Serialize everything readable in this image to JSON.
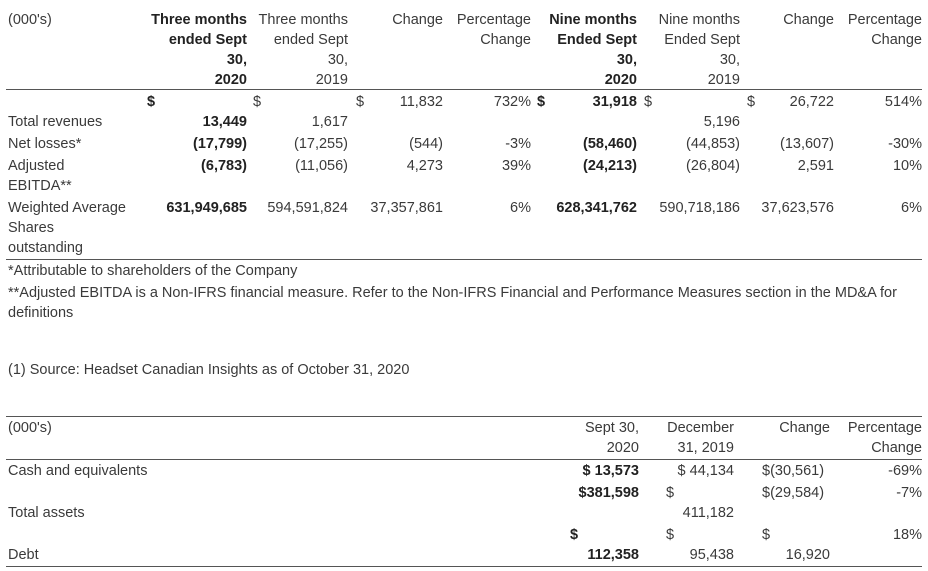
{
  "table1": {
    "header": {
      "unit": "(000's)",
      "col_3m_2020": [
        "Three months",
        "ended Sept",
        "30,",
        "2020"
      ],
      "col_3m_2019": [
        "Three months",
        "ended Sept",
        "30,",
        "2019"
      ],
      "col_change_3m": "Change",
      "col_pct_3m": [
        "Percentage",
        "Change"
      ],
      "col_9m_2020": [
        "Nine months",
        "Ended Sept",
        "30,",
        "2020"
      ],
      "col_9m_2019": [
        "Nine months",
        "Ended Sept",
        "30,",
        "2019"
      ],
      "col_change_9m": "Change",
      "col_pct_9m": [
        "Percentage",
        "Change"
      ]
    },
    "currency": "$",
    "rows": [
      {
        "label": "Total revenues",
        "q2020": "13,449",
        "q2019": "1,617",
        "q_change": "11,832",
        "q_pct": "732%",
        "n2020": "31,918",
        "n2019": "5,196",
        "n_change": "26,722",
        "n_pct": "514%"
      },
      {
        "label": "Net losses*",
        "q2020": "(17,799)",
        "q2019": "(17,255)",
        "q_change": "(544)",
        "q_pct": "-3%",
        "n2020": "(58,460)",
        "n2019": "(44,853)",
        "n_change": "(13,607)",
        "n_pct": "-30%"
      },
      {
        "label": "Adjusted EBITDA**",
        "label_lines": [
          "Adjusted",
          "EBITDA**"
        ],
        "q2020": "(6,783)",
        "q2019": "(11,056)",
        "q_change": "4,273",
        "q_pct": "39%",
        "n2020": "(24,213)",
        "n2019": "(26,804)",
        "n_change": "2,591",
        "n_pct": "10%"
      },
      {
        "label": "Weighted Average Shares outstanding",
        "label_lines": [
          "Weighted Average",
          "Shares",
          "outstanding"
        ],
        "q2020": "631,949,685",
        "q2019": "594,591,824",
        "q_change": "37,357,861",
        "q_pct": "6%",
        "n2020": "628,341,762",
        "n2019": "590,718,186",
        "n_change": "37,623,576",
        "n_pct": "6%"
      }
    ],
    "footnotes": [
      "*Attributable to shareholders of the Company",
      "**Adjusted EBITDA is a Non-IFRS financial measure. Refer to the Non-IFRS Financial and Performance Measures section in the MD&A for definitions"
    ]
  },
  "source_note": "(1) Source: Headset Canadian Insights as of October 31, 2020",
  "table2": {
    "header": {
      "unit": "(000's)",
      "col_sep": [
        "Sept 30,",
        "2020"
      ],
      "col_dec": [
        "December",
        "31, 2019"
      ],
      "col_change": "Change",
      "col_pct": [
        "Percentage",
        "Change"
      ]
    },
    "rows": [
      {
        "label": "Cash and equivalents",
        "sep": "$ 13,573",
        "dec": "$ 44,134",
        "change": "$(30,561)",
        "pct": "-69%"
      },
      {
        "label": "Total assets",
        "sep": "$381,598",
        "dec": "411,182",
        "change": "$(29,584)",
        "pct": "-7%"
      },
      {
        "label": "Debt",
        "sep": "112,358",
        "dec": "95,438",
        "change": "16,920",
        "pct": "18%"
      }
    ]
  }
}
